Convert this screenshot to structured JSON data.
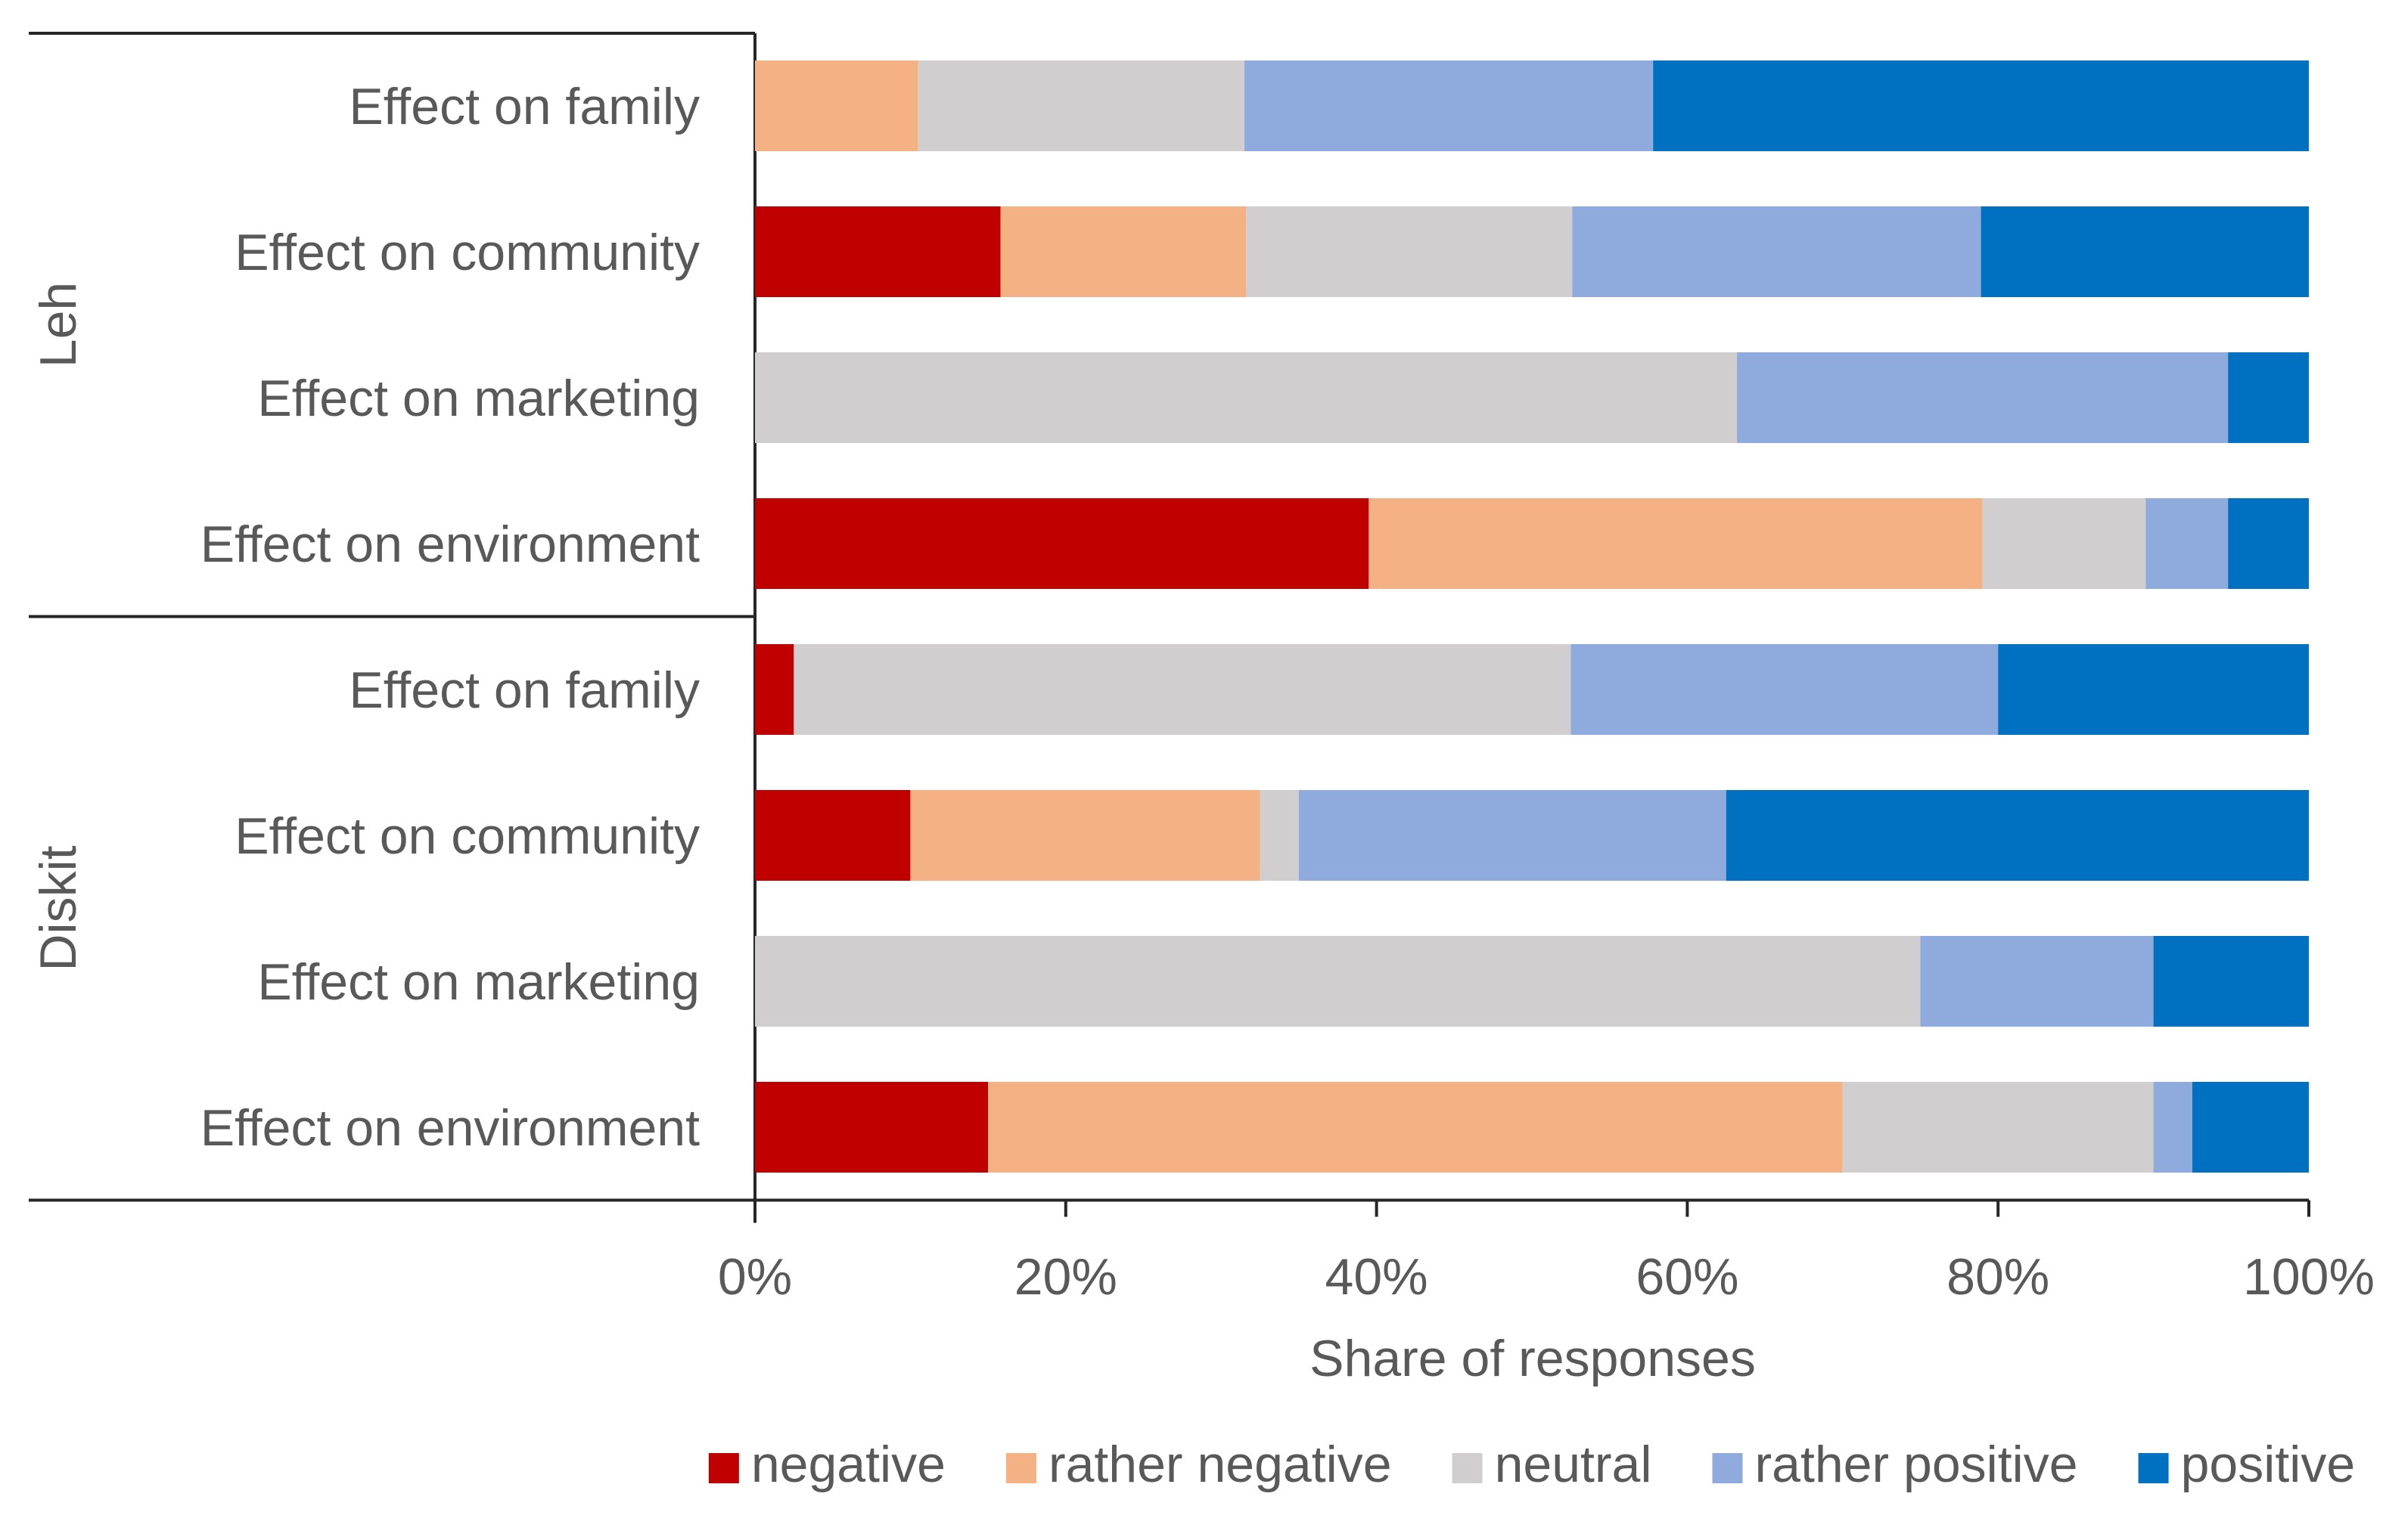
{
  "chart_data": {
    "type": "bar",
    "orientation": "horizontal",
    "stacked": true,
    "percent_stacked": true,
    "groups": [
      {
        "name": "Leh",
        "categories": [
          "Effect on family",
          "Effect on community",
          "Effect on marketing",
          "Effect on environment"
        ]
      },
      {
        "name": "Diskit",
        "categories": [
          "Effect on family",
          "Effect on community",
          "Effect on marketing",
          "Effect on environment"
        ]
      }
    ],
    "series": [
      {
        "name": "negative",
        "color": "#C00000",
        "values": [
          0,
          15.8,
          0,
          39.5,
          2.5,
          10,
          0,
          15
        ]
      },
      {
        "name": "rather negative",
        "color": "#F4B183",
        "values": [
          10.5,
          15.8,
          0,
          39.5,
          0,
          22.5,
          0,
          55
        ]
      },
      {
        "name": "neutral",
        "color": "#D0CECE",
        "values": [
          21,
          21,
          63.2,
          10.5,
          50,
          2.5,
          75,
          20
        ]
      },
      {
        "name": "rather positive",
        "color": "#8FAADC",
        "values": [
          26.3,
          26.3,
          31.6,
          5.3,
          27.5,
          27.5,
          15,
          2.5
        ]
      },
      {
        "name": "positive",
        "color": "#0070C0",
        "values": [
          42.2,
          21.1,
          5.2,
          5.2,
          20,
          37.5,
          10,
          7.5
        ]
      }
    ],
    "xlabel": "Share of responses",
    "xlim": [
      0,
      100
    ],
    "xticks": [
      "0%",
      "20%",
      "40%",
      "60%",
      "80%",
      "100%"
    ],
    "legend_position": "bottom",
    "grid": false
  }
}
